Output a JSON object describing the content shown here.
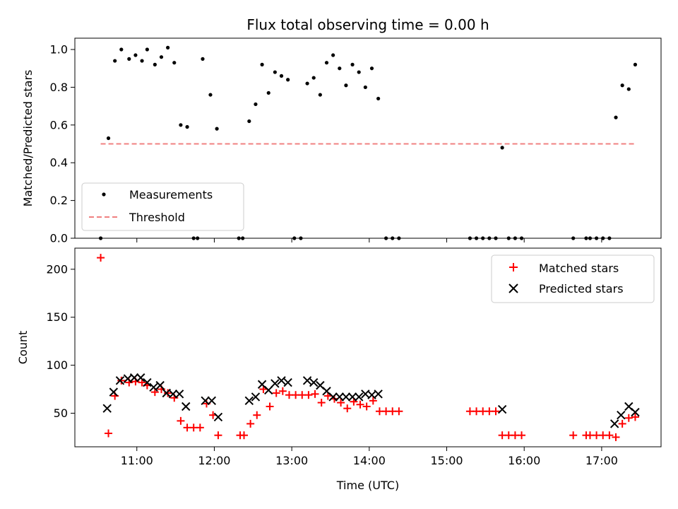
{
  "chart_data": [
    {
      "type": "scatter",
      "title": "Flux total observing time = 0.00 h",
      "xlabel": "",
      "ylabel": "Matched/Predicted stars",
      "xlim": [
        "10:12",
        "17:46"
      ],
      "ylim": [
        0,
        1.06
      ],
      "yticks": [
        0.0,
        0.2,
        0.4,
        0.6,
        0.8,
        1.0
      ],
      "xticks": [
        "11:00",
        "12:00",
        "13:00",
        "14:00",
        "15:00",
        "16:00",
        "17:00"
      ],
      "show_xtick_labels": false,
      "grid": false,
      "legend": {
        "position": "lower-left",
        "entries": [
          "Measurements",
          "Threshold"
        ]
      },
      "series": [
        {
          "name": "Measurements",
          "kind": "scatter",
          "marker": "dot",
          "color": "#000000",
          "points": [
            [
              "10:32",
              0.0
            ],
            [
              "10:38",
              0.53
            ],
            [
              "10:43",
              0.94
            ],
            [
              "10:48",
              1.0
            ],
            [
              "10:54",
              0.95
            ],
            [
              "10:59",
              0.97
            ],
            [
              "11:04",
              0.94
            ],
            [
              "11:08",
              1.0
            ],
            [
              "11:14",
              0.92
            ],
            [
              "11:19",
              0.96
            ],
            [
              "11:24",
              1.01
            ],
            [
              "11:29",
              0.93
            ],
            [
              "11:34",
              0.6
            ],
            [
              "11:39",
              0.59
            ],
            [
              "11:44",
              0.0
            ],
            [
              "11:47",
              0.0
            ],
            [
              "11:51",
              0.95
            ],
            [
              "11:57",
              0.76
            ],
            [
              "12:02",
              0.58
            ],
            [
              "12:19",
              0.0
            ],
            [
              "12:22",
              0.0
            ],
            [
              "12:27",
              0.62
            ],
            [
              "12:32",
              0.71
            ],
            [
              "12:37",
              0.92
            ],
            [
              "12:42",
              0.77
            ],
            [
              "12:47",
              0.88
            ],
            [
              "12:52",
              0.86
            ],
            [
              "12:57",
              0.84
            ],
            [
              "13:02",
              0.0
            ],
            [
              "13:07",
              0.0
            ],
            [
              "13:12",
              0.82
            ],
            [
              "13:17",
              0.85
            ],
            [
              "13:22",
              0.76
            ],
            [
              "13:27",
              0.93
            ],
            [
              "13:32",
              0.97
            ],
            [
              "13:37",
              0.9
            ],
            [
              "13:42",
              0.81
            ],
            [
              "13:47",
              0.92
            ],
            [
              "13:52",
              0.88
            ],
            [
              "13:57",
              0.8
            ],
            [
              "14:02",
              0.9
            ],
            [
              "14:07",
              0.74
            ],
            [
              "14:13",
              0.0
            ],
            [
              "14:18",
              0.0
            ],
            [
              "14:23",
              0.0
            ],
            [
              "15:18",
              0.0
            ],
            [
              "15:23",
              0.0
            ],
            [
              "15:28",
              0.0
            ],
            [
              "15:33",
              0.0
            ],
            [
              "15:38",
              0.0
            ],
            [
              "15:43",
              0.48
            ],
            [
              "15:48",
              0.0
            ],
            [
              "15:53",
              0.0
            ],
            [
              "15:58",
              0.0
            ],
            [
              "16:38",
              0.0
            ],
            [
              "16:48",
              0.0
            ],
            [
              "16:51",
              0.0
            ],
            [
              "16:56",
              0.0
            ],
            [
              "17:01",
              0.0
            ],
            [
              "17:06",
              0.0
            ],
            [
              "17:11",
              0.64
            ],
            [
              "17:16",
              0.81
            ],
            [
              "17:21",
              0.79
            ],
            [
              "17:26",
              0.92
            ]
          ]
        },
        {
          "name": "Threshold",
          "kind": "line",
          "style": "dashed",
          "color": "#f08080",
          "points": [
            [
              "10:32",
              0.5
            ],
            [
              "17:26",
              0.5
            ]
          ]
        }
      ]
    },
    {
      "type": "scatter",
      "title": "",
      "xlabel": "Time (UTC)",
      "ylabel": "Count",
      "xlim": [
        "10:12",
        "17:46"
      ],
      "ylim": [
        15,
        222
      ],
      "yticks": [
        50,
        100,
        150,
        200
      ],
      "xticks": [
        "11:00",
        "12:00",
        "13:00",
        "14:00",
        "15:00",
        "16:00",
        "17:00"
      ],
      "show_xtick_labels": true,
      "grid": false,
      "legend": {
        "position": "top-right",
        "entries": [
          "Matched stars",
          "Predicted stars"
        ]
      },
      "series": [
        {
          "name": "Matched stars",
          "kind": "scatter",
          "marker": "plus",
          "color": "#ff0000",
          "points": [
            [
              "10:32",
              212
            ],
            [
              "10:38",
              29
            ],
            [
              "10:43",
              68
            ],
            [
              "10:48",
              84
            ],
            [
              "10:54",
              82
            ],
            [
              "10:59",
              83
            ],
            [
              "11:04",
              82
            ],
            [
              "11:08",
              79
            ],
            [
              "11:14",
              72
            ],
            [
              "11:19",
              75
            ],
            [
              "11:24",
              71
            ],
            [
              "11:29",
              66
            ],
            [
              "11:34",
              42
            ],
            [
              "11:39",
              35
            ],
            [
              "11:44",
              35
            ],
            [
              "11:49",
              35
            ],
            [
              "11:54",
              60
            ],
            [
              "11:59",
              48
            ],
            [
              "12:03",
              27
            ],
            [
              "12:20",
              27
            ],
            [
              "12:23",
              27
            ],
            [
              "12:28",
              39
            ],
            [
              "12:33",
              48
            ],
            [
              "12:38",
              75
            ],
            [
              "12:43",
              57
            ],
            [
              "12:48",
              71
            ],
            [
              "12:53",
              73
            ],
            [
              "12:58",
              69
            ],
            [
              "13:03",
              69
            ],
            [
              "13:08",
              69
            ],
            [
              "13:13",
              69
            ],
            [
              "13:18",
              70
            ],
            [
              "13:23",
              61
            ],
            [
              "13:28",
              68
            ],
            [
              "13:33",
              65
            ],
            [
              "13:38",
              61
            ],
            [
              "13:43",
              55
            ],
            [
              "13:48",
              62
            ],
            [
              "13:53",
              59
            ],
            [
              "13:58",
              57
            ],
            [
              "14:03",
              63
            ],
            [
              "14:08",
              52
            ],
            [
              "14:13",
              52
            ],
            [
              "14:18",
              52
            ],
            [
              "14:23",
              52
            ],
            [
              "15:18",
              52
            ],
            [
              "15:23",
              52
            ],
            [
              "15:28",
              52
            ],
            [
              "15:33",
              52
            ],
            [
              "15:38",
              52
            ],
            [
              "15:43",
              27
            ],
            [
              "15:48",
              27
            ],
            [
              "15:53",
              27
            ],
            [
              "15:58",
              27
            ],
            [
              "16:38",
              27
            ],
            [
              "16:48",
              27
            ],
            [
              "16:51",
              27
            ],
            [
              "16:56",
              27
            ],
            [
              "17:01",
              27
            ],
            [
              "17:06",
              27
            ],
            [
              "17:11",
              25
            ],
            [
              "17:16",
              39
            ],
            [
              "17:21",
              45
            ],
            [
              "17:26",
              46
            ]
          ]
        },
        {
          "name": "Predicted stars",
          "kind": "scatter",
          "marker": "x",
          "color": "#000000",
          "points": [
            [
              "10:37",
              55
            ],
            [
              "10:42",
              72
            ],
            [
              "10:47",
              84
            ],
            [
              "10:53",
              86
            ],
            [
              "10:58",
              87
            ],
            [
              "11:03",
              87
            ],
            [
              "11:08",
              82
            ],
            [
              "11:13",
              77
            ],
            [
              "11:18",
              79
            ],
            [
              "11:23",
              71
            ],
            [
              "11:28",
              70
            ],
            [
              "11:33",
              70
            ],
            [
              "11:38",
              57
            ],
            [
              "11:53",
              63
            ],
            [
              "11:58",
              63
            ],
            [
              "12:03",
              46
            ],
            [
              "12:27",
              63
            ],
            [
              "12:32",
              67
            ],
            [
              "12:37",
              80
            ],
            [
              "12:42",
              74
            ],
            [
              "12:47",
              81
            ],
            [
              "12:52",
              84
            ],
            [
              "12:57",
              82
            ],
            [
              "13:12",
              84
            ],
            [
              "13:17",
              82
            ],
            [
              "13:22",
              79
            ],
            [
              "13:27",
              73
            ],
            [
              "13:32",
              67
            ],
            [
              "13:37",
              67
            ],
            [
              "13:42",
              67
            ],
            [
              "13:47",
              67
            ],
            [
              "13:52",
              67
            ],
            [
              "13:57",
              70
            ],
            [
              "14:02",
              69
            ],
            [
              "14:07",
              70
            ],
            [
              "15:43",
              54
            ],
            [
              "17:10",
              39
            ],
            [
              "17:15",
              48
            ],
            [
              "17:21",
              57
            ],
            [
              "17:26",
              51
            ]
          ]
        }
      ]
    }
  ]
}
